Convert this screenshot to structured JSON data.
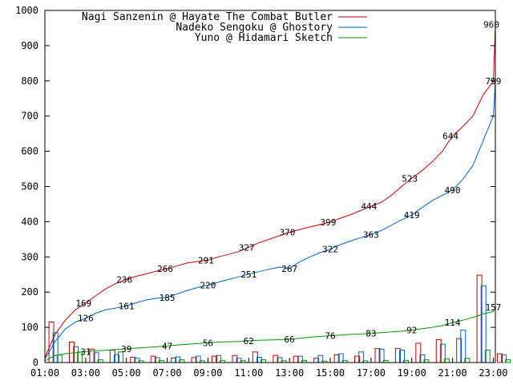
{
  "chart_data": {
    "type": "line",
    "ylim": [
      0,
      1000
    ],
    "yticks": [
      0,
      100,
      200,
      300,
      400,
      500,
      600,
      700,
      800,
      900,
      1000
    ],
    "ytick_labels": [
      "0",
      "100",
      "200",
      "300",
      "400",
      "500",
      "600",
      "700",
      "800",
      "900",
      "1000"
    ],
    "xlim": [
      1,
      23.1
    ],
    "xticks": [
      1,
      3,
      5,
      7,
      9,
      11,
      13,
      15,
      17,
      19,
      21,
      23
    ],
    "xtick_labels": [
      "01:00",
      "03:00",
      "05:00",
      "07:00",
      "09:00",
      "11:00",
      "13:00",
      "15:00",
      "17:00",
      "19:00",
      "21:00",
      "23:00"
    ],
    "grid": false,
    "legend_position": "top-right",
    "series": [
      {
        "name": "Nagi Sanzenin @ Hayate The Combat Butler",
        "color": "#cc0000",
        "cumulative": [
          [
            1.0,
            15
          ],
          [
            1.5,
            80
          ],
          [
            2.0,
            120
          ],
          [
            2.5,
            150
          ],
          [
            3.0,
            169
          ],
          [
            3.5,
            190
          ],
          [
            4.0,
            210
          ],
          [
            4.5,
            225
          ],
          [
            5.0,
            236
          ],
          [
            5.5,
            245
          ],
          [
            6.0,
            252
          ],
          [
            6.5,
            260
          ],
          [
            7.0,
            266
          ],
          [
            7.5,
            275
          ],
          [
            8.0,
            283
          ],
          [
            8.5,
            287
          ],
          [
            9.0,
            291
          ],
          [
            9.5,
            300
          ],
          [
            10.0,
            307
          ],
          [
            10.5,
            315
          ],
          [
            11.0,
            327
          ],
          [
            11.5,
            340
          ],
          [
            12.0,
            350
          ],
          [
            12.5,
            360
          ],
          [
            13.0,
            370
          ],
          [
            13.5,
            378
          ],
          [
            14.0,
            385
          ],
          [
            14.5,
            392
          ],
          [
            15.0,
            399
          ],
          [
            15.5,
            410
          ],
          [
            16.0,
            420
          ],
          [
            16.5,
            432
          ],
          [
            17.0,
            444
          ],
          [
            17.5,
            455
          ],
          [
            18.0,
            475
          ],
          [
            18.5,
            500
          ],
          [
            19.0,
            523
          ],
          [
            19.5,
            545
          ],
          [
            20.0,
            570
          ],
          [
            20.5,
            600
          ],
          [
            21.0,
            644
          ],
          [
            21.5,
            670
          ],
          [
            22.0,
            700
          ],
          [
            22.5,
            760
          ],
          [
            23.0,
            799
          ],
          [
            23.1,
            960
          ]
        ],
        "point_labels": [
          {
            "x": 2.9,
            "y": 169,
            "text": "169"
          },
          {
            "x": 4.9,
            "y": 236,
            "text": "236"
          },
          {
            "x": 6.9,
            "y": 266,
            "text": "266"
          },
          {
            "x": 8.9,
            "y": 291,
            "text": "291"
          },
          {
            "x": 10.9,
            "y": 327,
            "text": "327"
          },
          {
            "x": 12.9,
            "y": 370,
            "text": "370"
          },
          {
            "x": 14.9,
            "y": 399,
            "text": "399"
          },
          {
            "x": 16.9,
            "y": 444,
            "text": "444"
          },
          {
            "x": 18.9,
            "y": 523,
            "text": "523"
          },
          {
            "x": 20.9,
            "y": 644,
            "text": "644"
          },
          {
            "x": 22.9,
            "y": 960,
            "text": "960"
          }
        ],
        "hourly": [
          [
            1.2,
            115
          ],
          [
            2.2,
            58
          ],
          [
            3.2,
            38
          ],
          [
            4.2,
            35
          ],
          [
            5.2,
            15
          ],
          [
            6.2,
            18
          ],
          [
            7.2,
            13
          ],
          [
            8.2,
            14
          ],
          [
            9.2,
            18
          ],
          [
            10.2,
            20
          ],
          [
            11.2,
            30
          ],
          [
            12.2,
            20
          ],
          [
            13.2,
            18
          ],
          [
            14.2,
            12
          ],
          [
            15.2,
            22
          ],
          [
            16.2,
            18
          ],
          [
            17.2,
            40
          ],
          [
            18.2,
            40
          ],
          [
            19.2,
            55
          ],
          [
            20.2,
            65
          ],
          [
            21.2,
            68
          ],
          [
            22.2,
            248
          ],
          [
            23.2,
            25
          ]
        ]
      },
      {
        "name": "Nadeko Sengoku @ Ghostory",
        "color": "#0066cc",
        "cumulative": [
          [
            1.0,
            10
          ],
          [
            1.5,
            60
          ],
          [
            2.0,
            95
          ],
          [
            2.5,
            115
          ],
          [
            3.0,
            126
          ],
          [
            3.5,
            140
          ],
          [
            4.0,
            150
          ],
          [
            4.5,
            155
          ],
          [
            5.0,
            161
          ],
          [
            5.5,
            170
          ],
          [
            6.0,
            178
          ],
          [
            6.5,
            183
          ],
          [
            7.0,
            185
          ],
          [
            7.5,
            195
          ],
          [
            8.0,
            205
          ],
          [
            8.5,
            213
          ],
          [
            9.0,
            220
          ],
          [
            9.5,
            228
          ],
          [
            10.0,
            236
          ],
          [
            10.5,
            243
          ],
          [
            11.0,
            251
          ],
          [
            11.5,
            258
          ],
          [
            12.0,
            265
          ],
          [
            12.5,
            271
          ],
          [
            13.0,
            267
          ],
          [
            13.5,
            286
          ],
          [
            14.0,
            300
          ],
          [
            14.5,
            312
          ],
          [
            15.0,
            322
          ],
          [
            15.5,
            335
          ],
          [
            16.0,
            345
          ],
          [
            16.5,
            355
          ],
          [
            17.0,
            363
          ],
          [
            17.5,
            375
          ],
          [
            18.0,
            390
          ],
          [
            18.5,
            405
          ],
          [
            19.0,
            419
          ],
          [
            19.5,
            440
          ],
          [
            20.0,
            460
          ],
          [
            20.5,
            475
          ],
          [
            21.0,
            490
          ],
          [
            21.5,
            520
          ],
          [
            22.0,
            560
          ],
          [
            22.5,
            630
          ],
          [
            23.0,
            700
          ],
          [
            23.1,
            799
          ]
        ],
        "point_labels": [
          {
            "x": 3.0,
            "y": 126,
            "text": "126"
          },
          {
            "x": 5.0,
            "y": 161,
            "text": "161"
          },
          {
            "x": 7.0,
            "y": 185,
            "text": "185"
          },
          {
            "x": 9.0,
            "y": 220,
            "text": "220"
          },
          {
            "x": 11.0,
            "y": 251,
            "text": "251"
          },
          {
            "x": 13.0,
            "y": 267,
            "text": "267"
          },
          {
            "x": 15.0,
            "y": 322,
            "text": "322"
          },
          {
            "x": 17.0,
            "y": 363,
            "text": "363"
          },
          {
            "x": 19.0,
            "y": 419,
            "text": "419"
          },
          {
            "x": 21.0,
            "y": 490,
            "text": "490"
          },
          {
            "x": 23.0,
            "y": 799,
            "text": "799"
          }
        ],
        "hourly": [
          [
            1.4,
            85
          ],
          [
            2.4,
            45
          ],
          [
            3.4,
            28
          ],
          [
            4.4,
            22
          ],
          [
            5.4,
            12
          ],
          [
            6.4,
            14
          ],
          [
            7.4,
            16
          ],
          [
            8.4,
            18
          ],
          [
            9.4,
            20
          ],
          [
            10.4,
            12
          ],
          [
            11.4,
            15
          ],
          [
            12.4,
            14
          ],
          [
            13.4,
            18
          ],
          [
            14.4,
            20
          ],
          [
            15.4,
            25
          ],
          [
            16.4,
            30
          ],
          [
            17.4,
            38
          ],
          [
            18.4,
            35
          ],
          [
            19.4,
            22
          ],
          [
            20.4,
            52
          ],
          [
            21.4,
            92
          ],
          [
            22.4,
            218
          ],
          [
            23.4,
            22
          ]
        ]
      },
      {
        "name": "Yuno @ Hidamari Sketch",
        "color": "#009900",
        "cumulative": [
          [
            1.0,
            5
          ],
          [
            1.5,
            20
          ],
          [
            2.0,
            25
          ],
          [
            2.5,
            28
          ],
          [
            3.0,
            31
          ],
          [
            3.5,
            33
          ],
          [
            4.0,
            35
          ],
          [
            4.5,
            37
          ],
          [
            5.0,
            39
          ],
          [
            5.5,
            41
          ],
          [
            6.0,
            43
          ],
          [
            6.5,
            45
          ],
          [
            7.0,
            47
          ],
          [
            7.5,
            50
          ],
          [
            8.0,
            52
          ],
          [
            8.5,
            54
          ],
          [
            9.0,
            56
          ],
          [
            9.5,
            58
          ],
          [
            10.0,
            59
          ],
          [
            10.5,
            60
          ],
          [
            11.0,
            62
          ],
          [
            11.5,
            63
          ],
          [
            12.0,
            64
          ],
          [
            12.5,
            65
          ],
          [
            13.0,
            66
          ],
          [
            13.5,
            69
          ],
          [
            14.0,
            72
          ],
          [
            14.5,
            74
          ],
          [
            15.0,
            76
          ],
          [
            15.5,
            78
          ],
          [
            16.0,
            80
          ],
          [
            16.5,
            81
          ],
          [
            17.0,
            83
          ],
          [
            17.5,
            85
          ],
          [
            18.0,
            87
          ],
          [
            18.5,
            89
          ],
          [
            19.0,
            92
          ],
          [
            19.5,
            96
          ],
          [
            20.0,
            100
          ],
          [
            20.5,
            105
          ],
          [
            21.0,
            114
          ],
          [
            21.5,
            120
          ],
          [
            22.0,
            128
          ],
          [
            22.5,
            138
          ],
          [
            23.0,
            145
          ],
          [
            23.1,
            157
          ]
        ],
        "point_labels": [
          {
            "x": 3.0,
            "y": 31,
            "text": "31"
          },
          {
            "x": 5.0,
            "y": 39,
            "text": "39"
          },
          {
            "x": 7.0,
            "y": 47,
            "text": "47"
          },
          {
            "x": 9.0,
            "y": 56,
            "text": "56"
          },
          {
            "x": 11.0,
            "y": 62,
            "text": "62"
          },
          {
            "x": 13.0,
            "y": 66,
            "text": "66"
          },
          {
            "x": 15.0,
            "y": 76,
            "text": "76"
          },
          {
            "x": 17.0,
            "y": 83,
            "text": "83"
          },
          {
            "x": 19.0,
            "y": 92,
            "text": "92"
          },
          {
            "x": 21.0,
            "y": 114,
            "text": "114"
          },
          {
            "x": 23.0,
            "y": 157,
            "text": "157"
          }
        ],
        "hourly": [
          [
            1.6,
            22
          ],
          [
            2.6,
            30
          ],
          [
            3.6,
            8
          ],
          [
            4.6,
            30
          ],
          [
            5.6,
            5
          ],
          [
            6.6,
            6
          ],
          [
            7.6,
            8
          ],
          [
            8.6,
            5
          ],
          [
            9.6,
            6
          ],
          [
            10.6,
            5
          ],
          [
            11.6,
            8
          ],
          [
            12.6,
            5
          ],
          [
            13.6,
            6
          ],
          [
            14.6,
            4
          ],
          [
            15.6,
            6
          ],
          [
            16.6,
            5
          ],
          [
            17.6,
            6
          ],
          [
            18.6,
            6
          ],
          [
            19.6,
            8
          ],
          [
            20.6,
            10
          ],
          [
            21.6,
            12
          ],
          [
            22.6,
            35
          ],
          [
            23.6,
            8
          ]
        ]
      }
    ]
  }
}
